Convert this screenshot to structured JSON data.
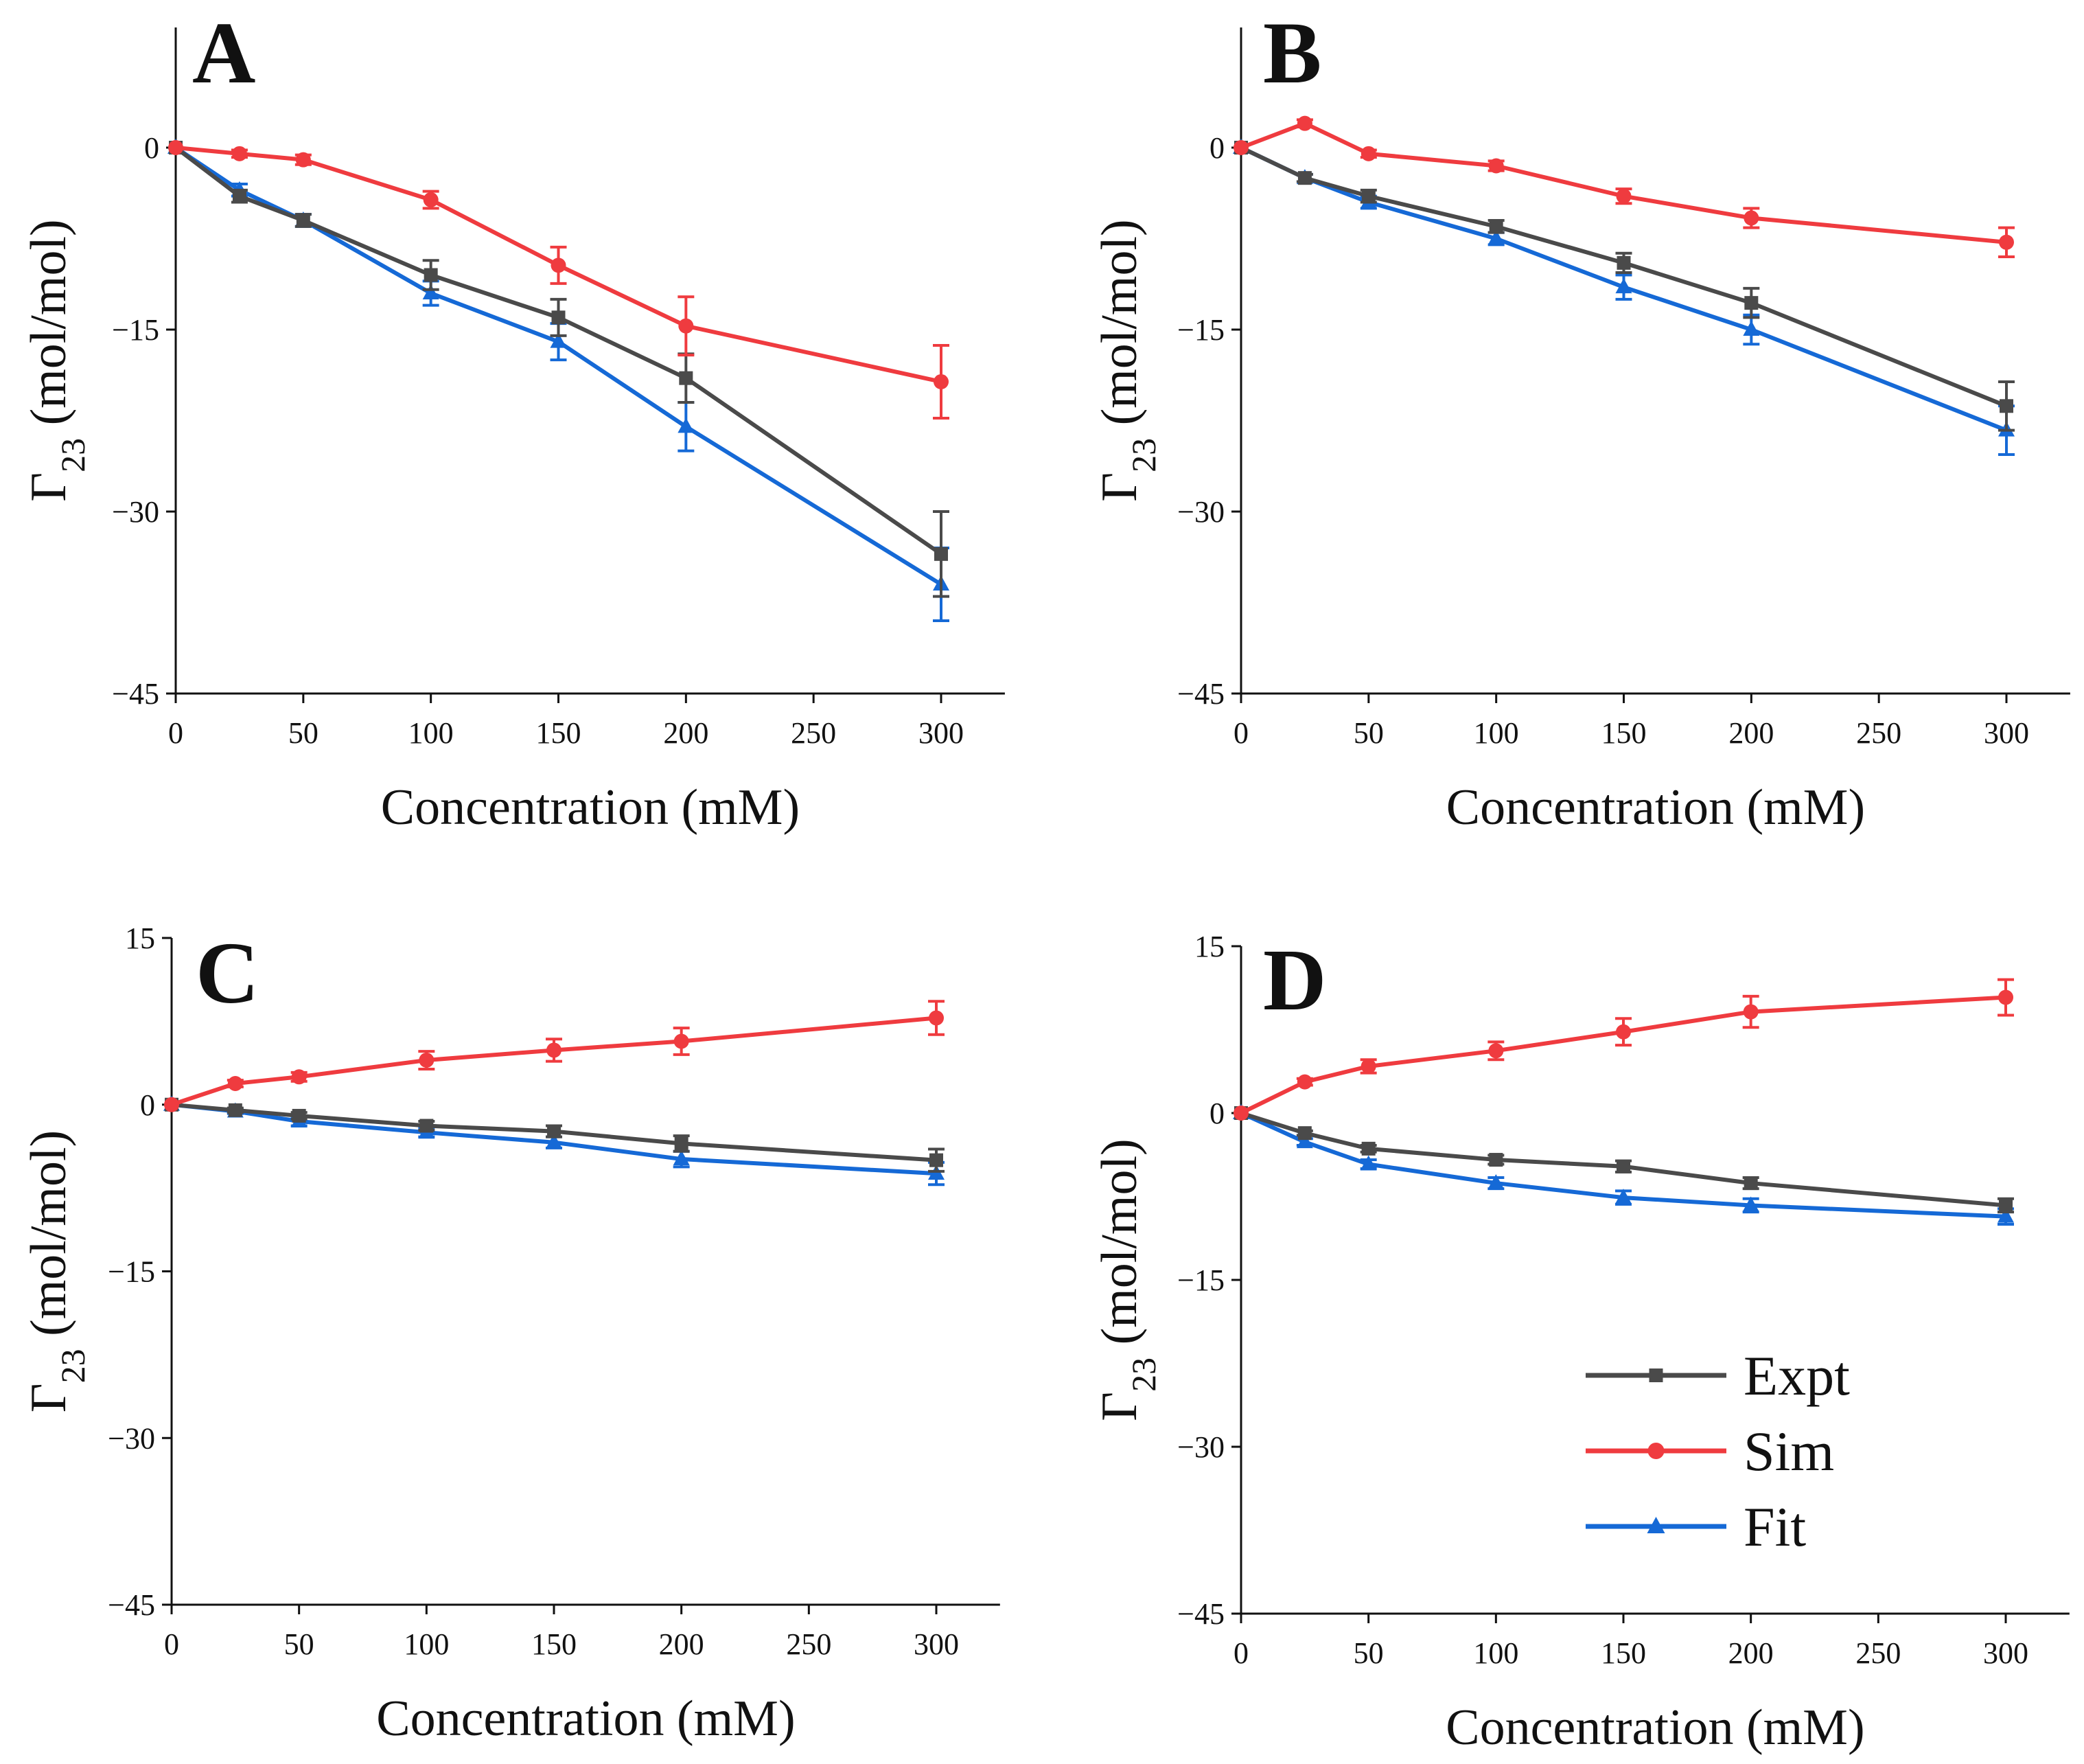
{
  "colors": {
    "Expt": "#4a4a4a",
    "Sim": "#ef3b3f",
    "Fit": "#1569d6",
    "axis": "#111111"
  },
  "legend": {
    "items": [
      {
        "name": "Expt",
        "marker": "square"
      },
      {
        "name": "Sim",
        "marker": "circle"
      },
      {
        "name": "Fit",
        "marker": "triangle"
      }
    ]
  },
  "chart_data": [
    {
      "type": "line",
      "panel": "A",
      "xlabel": "Concentration (mM)",
      "ylabel_symbol": "Γ",
      "ylabel_sub": "23",
      "ylabel_rest": "(mol/mol)",
      "xlim": [
        0,
        325
      ],
      "ylim": [
        -45,
        10
      ],
      "xticks": [
        0,
        50,
        100,
        150,
        200,
        250,
        300
      ],
      "yticks": [
        0,
        -15,
        -30,
        -45
      ],
      "ytick_labels": [
        "0",
        "−15",
        "−30",
        "−45"
      ],
      "x": [
        0,
        25,
        50,
        100,
        150,
        200,
        300
      ],
      "series": [
        {
          "name": "Expt",
          "values": [
            0,
            -4,
            -6,
            -10.5,
            -14,
            -19,
            -33.5
          ],
          "errors": [
            0,
            0.5,
            0.5,
            1.2,
            1.5,
            2,
            3.5
          ]
        },
        {
          "name": "Sim",
          "values": [
            0,
            -0.5,
            -1,
            -4.3,
            -9.7,
            -14.7,
            -19.3
          ],
          "errors": [
            0,
            0.3,
            0.4,
            0.7,
            1.5,
            2.4,
            3
          ]
        },
        {
          "name": "Fit",
          "values": [
            0,
            -3.5,
            -6,
            -12,
            -16,
            -23,
            -36
          ],
          "errors": [
            0,
            0.5,
            0.5,
            1,
            1.5,
            2,
            3
          ]
        }
      ]
    },
    {
      "type": "line",
      "panel": "B",
      "xlabel": "Concentration (mM)",
      "ylabel_symbol": "Γ",
      "ylabel_sub": "23",
      "ylabel_rest": "(mol/mol)",
      "xlim": [
        0,
        325
      ],
      "ylim": [
        -45,
        10
      ],
      "xticks": [
        0,
        50,
        100,
        150,
        200,
        250,
        300
      ],
      "yticks": [
        0,
        -15,
        -30,
        -45
      ],
      "ytick_labels": [
        "0",
        "−15",
        "−30",
        "−45"
      ],
      "x": [
        0,
        25,
        50,
        100,
        150,
        200,
        300
      ],
      "series": [
        {
          "name": "Expt",
          "values": [
            0,
            -2.5,
            -4,
            -6.5,
            -9.5,
            -12.8,
            -21.3
          ],
          "errors": [
            0,
            0.3,
            0.5,
            0.5,
            0.8,
            1.2,
            2
          ]
        },
        {
          "name": "Sim",
          "values": [
            0,
            2,
            -0.5,
            -1.5,
            -4,
            -5.8,
            -7.8
          ],
          "errors": [
            0,
            0.3,
            0.3,
            0.4,
            0.6,
            0.8,
            1.2
          ]
        },
        {
          "name": "Fit",
          "values": [
            0,
            -2.5,
            -4.5,
            -7.5,
            -11.5,
            -15,
            -23.3
          ],
          "errors": [
            0,
            0.3,
            0.5,
            0.5,
            1,
            1.2,
            2
          ]
        }
      ]
    },
    {
      "type": "line",
      "panel": "C",
      "xlabel": "Concentration (mM)",
      "ylabel_symbol": "Γ",
      "ylabel_sub": "23",
      "ylabel_rest": "(mol/mol)",
      "xlim": [
        0,
        325
      ],
      "ylim": [
        -45,
        15
      ],
      "xticks": [
        0,
        50,
        100,
        150,
        200,
        250,
        300
      ],
      "yticks": [
        15,
        0,
        -15,
        -30,
        -45
      ],
      "ytick_labels": [
        "15",
        "0",
        "−15",
        "−30",
        "−45"
      ],
      "x": [
        0,
        25,
        50,
        100,
        150,
        200,
        300
      ],
      "series": [
        {
          "name": "Expt",
          "values": [
            0,
            -0.5,
            -1,
            -1.9,
            -2.4,
            -3.5,
            -5
          ],
          "errors": [
            0,
            0.2,
            0.3,
            0.4,
            0.5,
            0.7,
            1
          ]
        },
        {
          "name": "Sim",
          "values": [
            0,
            1.9,
            2.5,
            4,
            4.9,
            5.7,
            7.8
          ],
          "errors": [
            0,
            0.3,
            0.4,
            0.8,
            1,
            1.2,
            1.5
          ]
        },
        {
          "name": "Fit",
          "values": [
            0,
            -0.6,
            -1.5,
            -2.5,
            -3.4,
            -4.9,
            -6.2
          ],
          "errors": [
            0,
            0.2,
            0.4,
            0.4,
            0.5,
            0.7,
            1
          ]
        }
      ]
    },
    {
      "type": "line",
      "panel": "D",
      "xlabel": "Concentration (mM)",
      "ylabel_symbol": "Γ",
      "ylabel_sub": "23",
      "ylabel_rest": "(mol/mol)",
      "xlim": [
        0,
        325
      ],
      "ylim": [
        -45,
        15
      ],
      "xticks": [
        0,
        50,
        100,
        150,
        200,
        250,
        300
      ],
      "yticks": [
        15,
        0,
        -15,
        -30,
        -45
      ],
      "ytick_labels": [
        "15",
        "0",
        "−15",
        "−30",
        "−45"
      ],
      "x": [
        0,
        25,
        50,
        100,
        150,
        200,
        300
      ],
      "series": [
        {
          "name": "Expt",
          "values": [
            0,
            -1.8,
            -3.2,
            -4.2,
            -4.8,
            -6.3,
            -8.3
          ],
          "errors": [
            0,
            0.2,
            0.3,
            0.4,
            0.5,
            0.5,
            0.6
          ]
        },
        {
          "name": "Sim",
          "values": [
            0,
            2.8,
            4.2,
            5.6,
            7.3,
            9.1,
            10.4
          ],
          "errors": [
            0,
            0.3,
            0.6,
            0.8,
            1.2,
            1.4,
            1.6
          ]
        },
        {
          "name": "Fit",
          "values": [
            0,
            -2.6,
            -4.6,
            -6.3,
            -7.6,
            -8.3,
            -9.3
          ],
          "errors": [
            0,
            0.3,
            0.4,
            0.5,
            0.6,
            0.6,
            0.7
          ]
        }
      ]
    }
  ]
}
